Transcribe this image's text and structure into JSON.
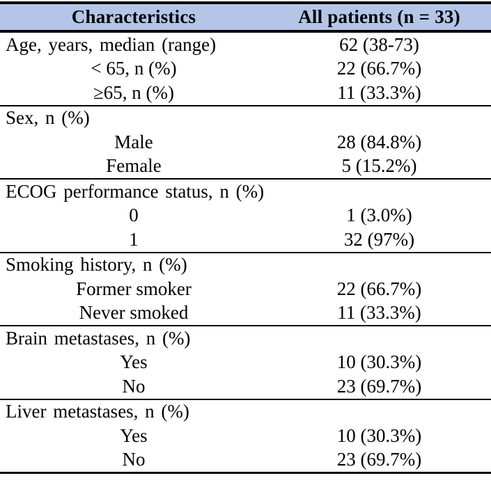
{
  "header": {
    "col1": "Characteristics",
    "col2": "All patients (n = 33)"
  },
  "sections": [
    {
      "rows": [
        {
          "label": "Age, years, median (range)",
          "value": "62 (38-73)",
          "indent": false
        },
        {
          "label": "< 65, n (%)",
          "value": "22 (66.7%)",
          "indent": true
        },
        {
          "label": "≥65, n (%)",
          "value": "11 (33.3%)",
          "indent": true
        }
      ]
    },
    {
      "rows": [
        {
          "label": "Sex, n (%)",
          "value": "",
          "indent": false
        },
        {
          "label": "Male",
          "value": "28 (84.8%)",
          "indent": true
        },
        {
          "label": "Female",
          "value": "5 (15.2%)",
          "indent": true
        }
      ]
    },
    {
      "rows": [
        {
          "label": "ECOG performance status, n (%)",
          "value": "",
          "indent": false
        },
        {
          "label": "0",
          "value": "1 (3.0%)",
          "indent": true
        },
        {
          "label": "1",
          "value": "32 (97%)",
          "indent": true
        }
      ]
    },
    {
      "rows": [
        {
          "label": "Smoking history, n (%)",
          "value": "",
          "indent": false
        },
        {
          "label": "Former smoker",
          "value": "22 (66.7%)",
          "indent": true
        },
        {
          "label": "Never smoked",
          "value": "11 (33.3%)",
          "indent": true
        }
      ]
    },
    {
      "rows": [
        {
          "label": "Brain metastases, n (%)",
          "value": "",
          "indent": false
        },
        {
          "label": "Yes",
          "value": "10 (30.3%)",
          "indent": true
        },
        {
          "label": "No",
          "value": "23 (69.7%)",
          "indent": true
        }
      ]
    },
    {
      "rows": [
        {
          "label": "Liver metastases, n (%)",
          "value": "",
          "indent": false
        },
        {
          "label": "Yes",
          "value": "10 (30.3%)",
          "indent": true
        },
        {
          "label": "No",
          "value": "23 (69.7%)",
          "indent": true
        }
      ]
    }
  ],
  "colors": {
    "header_bg": "#b4c6e7",
    "border": "#000000",
    "text": "#000000"
  }
}
